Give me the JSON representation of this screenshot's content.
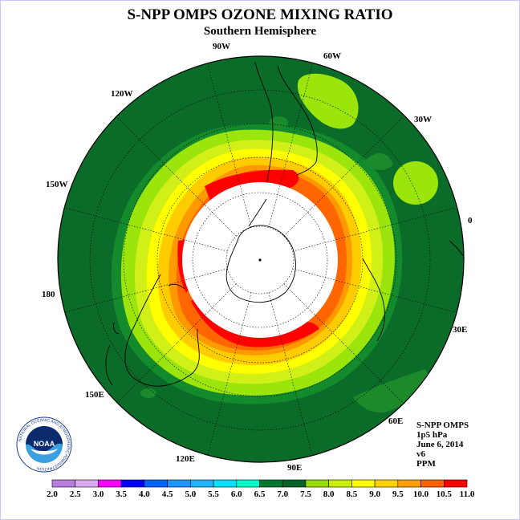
{
  "title": "S-NPP OMPS OZONE MIXING RATIO",
  "subtitle": "Southern Hemisphere",
  "lon_labels": {
    "w90": "90W",
    "w60": "60W",
    "w30": "30W",
    "lon0": "0",
    "e30": "30E",
    "e60": "60E",
    "e90": "90E",
    "e120": "120E",
    "e150": "150E",
    "lon180": "180",
    "w150": "150W",
    "w120": "120W"
  },
  "info": {
    "instrument": "S-NPP OMPS",
    "pressure": "1p5 hPa",
    "date": "June 6, 2014",
    "version": "v6",
    "units": "PPM"
  },
  "colorbar": {
    "ticks": [
      "2.0",
      "2.5",
      "3.0",
      "3.5",
      "4.0",
      "4.5",
      "5.0",
      "5.5",
      "6.0",
      "6.5",
      "7.0",
      "7.5",
      "8.0",
      "8.5",
      "9.0",
      "9.5",
      "10.0",
      "10.5",
      "11.0"
    ],
    "colors": [
      "#b77ee0",
      "#d9a8f0",
      "#ff00ff",
      "#0000ff",
      "#0064ff",
      "#1e96ff",
      "#1eb4ff",
      "#00e0ff",
      "#00ffc8",
      "#007830",
      "#006428",
      "#96dc00",
      "#c8f000",
      "#ffff00",
      "#ffd200",
      "#ffa000",
      "#ff6400",
      "#ff0000",
      "#8c5a3c"
    ]
  },
  "logo": {
    "name": "NOAA",
    "ring_text": "NATIONAL OCEANIC AND ATMOSPHERIC ADMINISTRATION",
    "bottom_text": "U.S. DEPARTMENT OF COMMERCE"
  },
  "colors": {
    "dark_green": "#0b6b29",
    "medium_green": "#1c8a2a",
    "lime": "#9be40c",
    "yellow_green": "#d0f018",
    "yellow": "#ffff00",
    "gold": "#ffcc00",
    "orange": "#ff9900",
    "dark_orange": "#ff6600",
    "red": "#ff0000"
  }
}
